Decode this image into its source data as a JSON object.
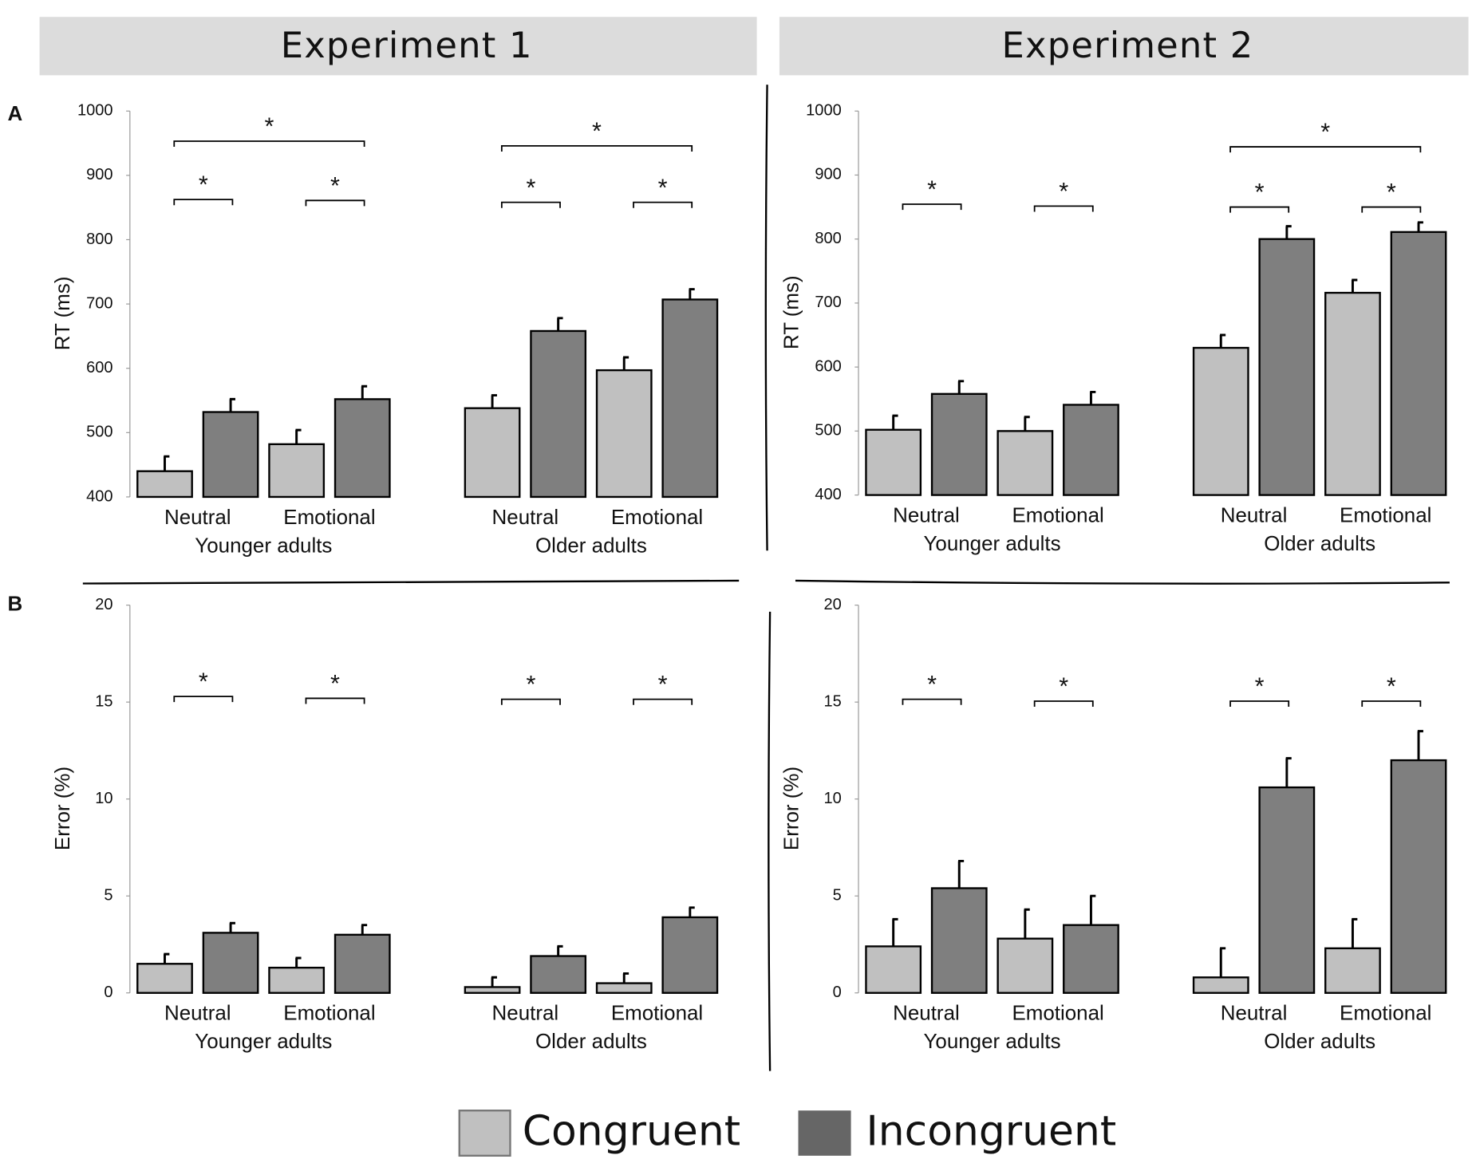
{
  "headers": [
    "Experiment 1",
    "Experiment 2"
  ],
  "panels": [
    "A",
    "B"
  ],
  "chart_data": [
    {
      "type": "bar",
      "ylabel": "RT (ms)",
      "ylim": [
        400,
        1000
      ],
      "yticks": [
        400,
        500,
        600,
        700,
        800,
        900,
        1000
      ],
      "categories": [
        "Neutral",
        "Emotional",
        "Neutral",
        "Emotional"
      ],
      "groups": [
        "Younger adults",
        "Older adults"
      ],
      "series": [
        {
          "name": "Congruent",
          "color": "#c0c0c0",
          "values": [
            440,
            482,
            538,
            597
          ],
          "errors": [
            23,
            22,
            20,
            20
          ]
        },
        {
          "name": "Incongruent",
          "color": "#7f7f7f",
          "values": [
            532,
            552,
            658,
            707
          ],
          "errors": [
            20,
            20,
            20,
            16
          ]
        }
      ],
      "annotations": [
        "*",
        "*",
        "*",
        "*",
        "*",
        "*"
      ]
    },
    {
      "type": "bar",
      "ylabel": "RT (ms)",
      "ylim": [
        400,
        1000
      ],
      "yticks": [
        400,
        500,
        600,
        700,
        800,
        900,
        1000
      ],
      "categories": [
        "Neutral",
        "Emotional",
        "Neutral",
        "Emotional"
      ],
      "groups": [
        "Younger adults",
        "Older adults"
      ],
      "series": [
        {
          "name": "Congruent",
          "color": "#c0c0c0",
          "values": [
            502,
            500,
            630,
            716
          ],
          "errors": [
            22,
            22,
            20,
            20
          ]
        },
        {
          "name": "Incongruent",
          "color": "#7f7f7f",
          "values": [
            558,
            541,
            800,
            811
          ],
          "errors": [
            20,
            20,
            20,
            15
          ]
        }
      ],
      "annotations": [
        "*",
        "*",
        "*",
        "*",
        "*"
      ]
    },
    {
      "type": "bar",
      "ylabel": "Error (%)",
      "ylim": [
        0,
        20
      ],
      "yticks": [
        0,
        5,
        10,
        15,
        20
      ],
      "categories": [
        "Neutral",
        "Emotional",
        "Neutral",
        "Emotional"
      ],
      "groups": [
        "Younger adults",
        "Older adults"
      ],
      "series": [
        {
          "name": "Congruent",
          "color": "#c0c0c0",
          "values": [
            1.5,
            1.3,
            0.3,
            0.5
          ],
          "errors": [
            0.5,
            0.5,
            0.5,
            0.5
          ]
        },
        {
          "name": "Incongruent",
          "color": "#7f7f7f",
          "values": [
            3.1,
            3.0,
            1.9,
            3.9
          ],
          "errors": [
            0.5,
            0.5,
            0.5,
            0.5
          ]
        }
      ],
      "annotations": [
        "*",
        "*",
        "*",
        "*"
      ]
    },
    {
      "type": "bar",
      "ylabel": "Error (%)",
      "ylim": [
        0,
        20
      ],
      "yticks": [
        0,
        5,
        10,
        15,
        20
      ],
      "categories": [
        "Neutral",
        "Emotional",
        "Neutral",
        "Emotional"
      ],
      "groups": [
        "Younger adults",
        "Older adults"
      ],
      "series": [
        {
          "name": "Congruent",
          "color": "#c0c0c0",
          "values": [
            2.4,
            2.8,
            0.8,
            2.3
          ],
          "errors": [
            1.4,
            1.5,
            1.5,
            1.5
          ]
        },
        {
          "name": "Incongruent",
          "color": "#7f7f7f",
          "values": [
            5.4,
            3.5,
            10.6,
            12.0
          ],
          "errors": [
            1.4,
            1.5,
            1.5,
            1.5
          ]
        }
      ],
      "annotations": [
        "*",
        "*",
        "*",
        "*"
      ]
    }
  ]
}
